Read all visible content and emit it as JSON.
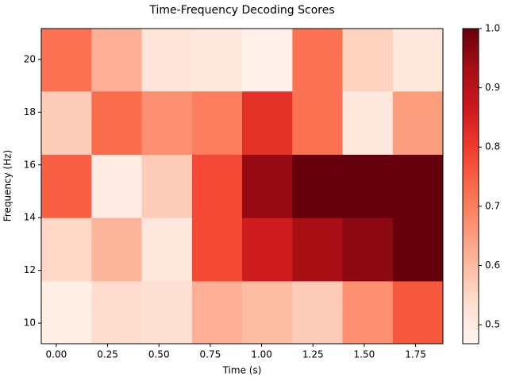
{
  "chart_data": {
    "type": "heatmap",
    "title": "Time-Frequency Decoding Scores",
    "x_label": "Time (s)",
    "y_label": "Frequency (Hz)",
    "x_edges": [
      -0.073,
      0.172,
      0.416,
      0.661,
      0.905,
      1.15,
      1.394,
      1.639,
      1.883
    ],
    "y_edges": [
      9.22,
      11.6,
      14.0,
      16.4,
      18.8,
      21.17
    ],
    "values": [
      [
        0.49,
        0.54,
        0.53,
        0.62,
        0.6,
        0.57,
        0.67,
        0.76
      ],
      [
        0.55,
        0.61,
        0.51,
        0.78,
        0.86,
        0.93,
        0.96,
        1.0
      ],
      [
        0.75,
        0.5,
        0.57,
        0.78,
        0.95,
        1.0,
        1.0,
        1.0
      ],
      [
        0.57,
        0.73,
        0.67,
        0.7,
        0.82,
        0.72,
        0.51,
        0.65
      ],
      [
        0.72,
        0.62,
        0.52,
        0.51,
        0.48,
        0.72,
        0.56,
        0.51
      ]
    ],
    "xlim": [
      -0.073,
      1.883
    ],
    "ylim": [
      9.22,
      21.17
    ],
    "xticks": [
      {
        "value": 0,
        "label": "0.00"
      },
      0.25,
      {
        "value": 0.5,
        "label": "0.50"
      },
      0.75,
      {
        "value": 1,
        "label": "1.00"
      },
      1.25,
      {
        "value": 1.5,
        "label": "1.50"
      },
      1.75
    ],
    "yticks": [
      10,
      12,
      14,
      16,
      18,
      20
    ],
    "clim": [
      0.468,
      1.0
    ],
    "cticks": [
      0.5,
      0.6,
      0.7,
      0.8,
      0.9,
      {
        "value": 1,
        "label": "1.0"
      }
    ],
    "colormap": [
      "#fff5f0",
      "#fee0d2",
      "#fcbba1",
      "#fc9272",
      "#fb6a4a",
      "#ef3b2c",
      "#cb181d",
      "#a50f15",
      "#67000d"
    ]
  }
}
